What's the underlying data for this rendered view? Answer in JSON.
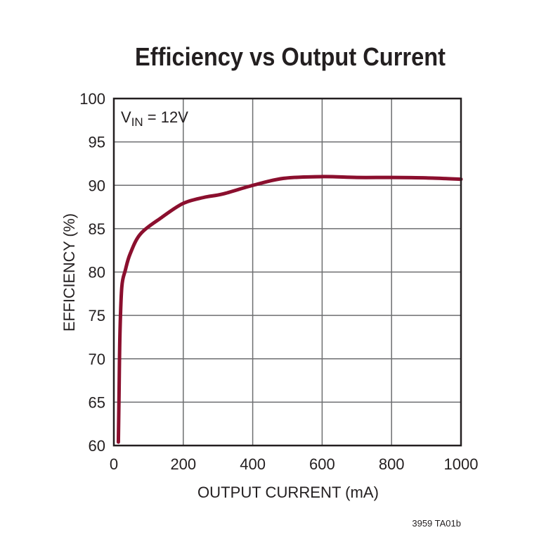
{
  "chart_data": {
    "type": "line",
    "title": "Efficiency vs Output Current",
    "xlabel": "OUTPUT CURRENT (mA)",
    "ylabel": "EFFICIENCY (%)",
    "xlim": [
      0,
      1000
    ],
    "ylim": [
      60,
      100
    ],
    "xticks": [
      "0",
      "200",
      "400",
      "600",
      "800",
      "1000"
    ],
    "yticks": [
      "60",
      "65",
      "70",
      "75",
      "80",
      "85",
      "90",
      "95",
      "100"
    ],
    "grid": true,
    "annotation": {
      "main": "V",
      "sub": "IN",
      "rest": " = 12V"
    },
    "footnote": "3959 TA01b",
    "series": [
      {
        "color": "#8b0f2e",
        "x": [
          13,
          15,
          17.6,
          23,
          33,
          47,
          77,
          138,
          199,
          259,
          314,
          401,
          489,
          600,
          700,
          800,
          900,
          1000
        ],
        "y": [
          60.4,
          66,
          72.9,
          78.3,
          80.2,
          82.1,
          84.4,
          86.3,
          87.9,
          88.6,
          89.0,
          90.0,
          90.8,
          91.0,
          90.9,
          90.9,
          90.85,
          90.7
        ]
      }
    ]
  }
}
